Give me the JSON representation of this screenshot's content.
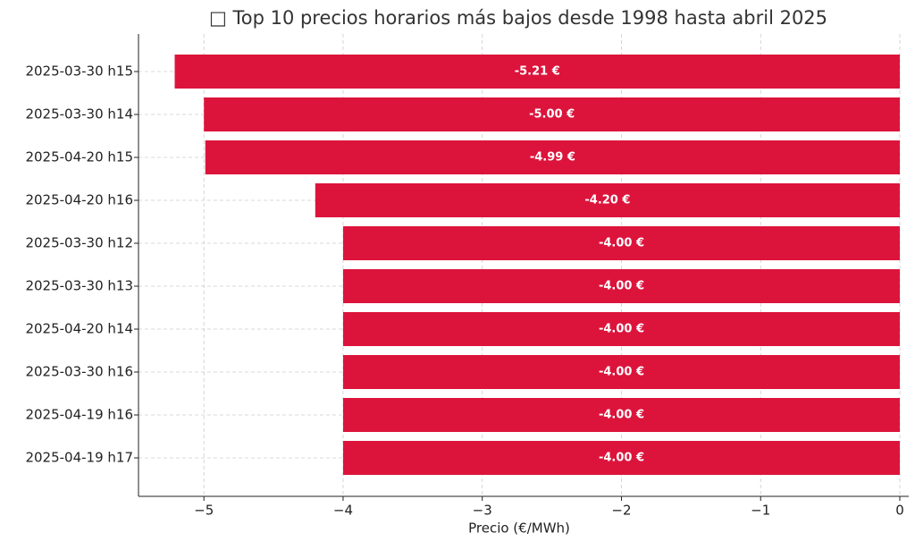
{
  "chart_data": {
    "type": "barh",
    "title": "□ Top 10 precios horarios más bajos desde 1998 hasta abril 2025",
    "x_label": "Precio (€/MWh)",
    "categories": [
      "2025-03-30 h15",
      "2025-03-30 h14",
      "2025-04-20 h15",
      "2025-04-20 h16",
      "2025-03-30 h12",
      "2025-03-30 h13",
      "2025-04-20 h14",
      "2025-03-30 h16",
      "2025-04-19 h16",
      "2025-04-19 h17"
    ],
    "values": [
      -5.21,
      -5.0,
      -4.99,
      -4.2,
      -4.0,
      -4.0,
      -4.0,
      -4.0,
      -4.0,
      -4.0
    ],
    "value_labels": [
      "-5.21 €",
      "-5.00 €",
      "-4.99 €",
      "-4.20 €",
      "-4.00 €",
      "-4.00 €",
      "-4.00 €",
      "-4.00 €",
      "-4.00 €",
      "-4.00 €"
    ],
    "color": "#dc143c",
    "xlim": [
      -5.47,
      0
    ],
    "xticks": [
      {
        "value": -5,
        "label": "−5"
      },
      {
        "value": -4,
        "label": "−4"
      },
      {
        "value": -3,
        "label": "−3"
      },
      {
        "value": -2,
        "label": "−2"
      },
      {
        "value": -1,
        "label": "−1"
      },
      0
    ],
    "grid": true
  }
}
